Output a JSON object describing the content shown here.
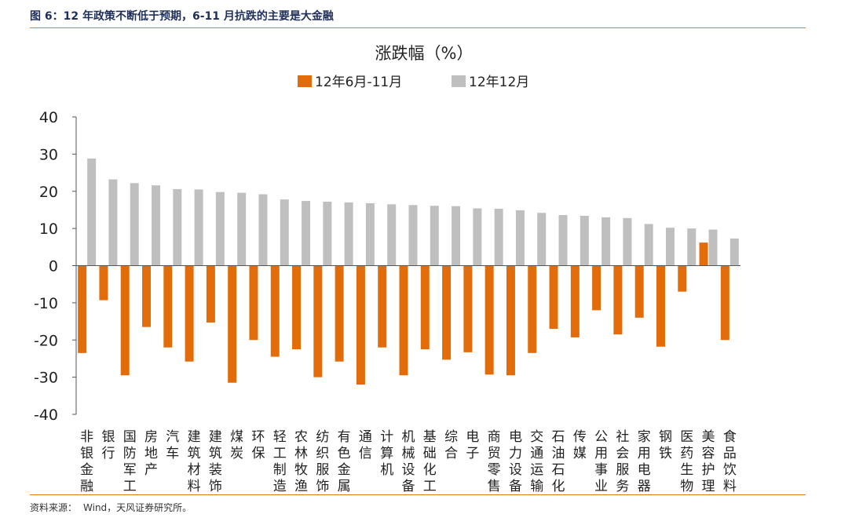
{
  "figure": {
    "title": "图 6：12 年政策不断低于预期，6-11 月抗跌的主要是大金融",
    "source_label": "资料来源：",
    "source_text": "Wind，天风证券研究所。"
  },
  "colors": {
    "series1": "#e36c0a",
    "series2": "#bfbfbf",
    "rule": "#e07a1f",
    "title": "#1e2f5a"
  },
  "chart_data": {
    "type": "bar",
    "title": "涨跌幅（%）",
    "xlabel": "",
    "ylabel": "",
    "ylim": [
      -40,
      40
    ],
    "yticks": [
      40,
      30,
      20,
      10,
      0,
      -10,
      -20,
      -30,
      -40
    ],
    "grid": false,
    "legend_position": "top-center",
    "categories": [
      "非银金融",
      "银行",
      "国防军工",
      "房地产",
      "汽车",
      "建筑材料",
      "建筑装饰",
      "煤炭",
      "环保",
      "轻工制造",
      "农林牧渔",
      "纺织服饰",
      "有色金属",
      "通信",
      "计算机",
      "机械设备",
      "基础化工",
      "综合",
      "电子",
      "商贸零售",
      "电力设备",
      "交通运输",
      "石油石化",
      "传媒",
      "公用事业",
      "社会服务",
      "家用电器",
      "钢铁",
      "医药生物",
      "美容护理",
      "食品饮料"
    ],
    "series": [
      {
        "name": "12年6月-11月",
        "values": [
          -23.5,
          -9.3,
          -29.5,
          -16.5,
          -22,
          -25.8,
          -15.3,
          -31.5,
          -20,
          -24.5,
          -22.5,
          -30,
          -25.8,
          -32,
          -22,
          -29.5,
          -22.5,
          -25.3,
          -23.3,
          -29.3,
          -29.5,
          -23.5,
          -17,
          -19.3,
          -12,
          -18.5,
          -14,
          -21.8,
          -7,
          6.2,
          -20
        ]
      },
      {
        "name": "12年12月",
        "values": [
          28.8,
          23.2,
          22.2,
          21.6,
          20.6,
          20.5,
          19.8,
          19.6,
          19.2,
          17.8,
          17.4,
          17.2,
          17,
          16.8,
          16.5,
          16.3,
          16.1,
          16,
          15.4,
          15.3,
          14.9,
          14.2,
          13.6,
          13.4,
          13,
          12.8,
          11.2,
          10.2,
          10,
          9.7,
          7.3
        ]
      }
    ]
  }
}
